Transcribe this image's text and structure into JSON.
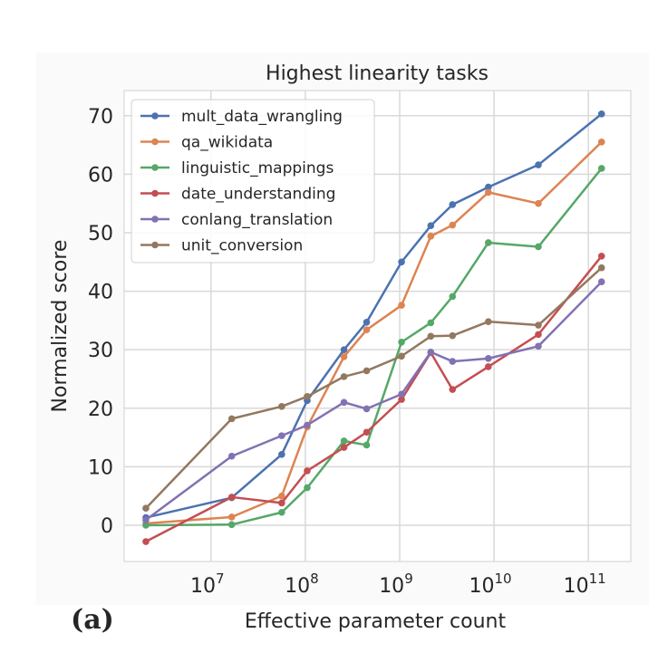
{
  "chart_data": {
    "type": "line",
    "title": "Highest linearity tasks",
    "xlabel": "Effective parameter count",
    "ylabel": "Normalized score",
    "panel_label": "(a)",
    "x_scale": "log10",
    "x_log10": [
      6.31,
      7.22,
      7.75,
      8.02,
      8.41,
      8.65,
      9.02,
      9.33,
      9.56,
      9.94,
      10.47,
      11.14
    ],
    "xlim_log10": [
      6.08,
      11.45
    ],
    "ylim": [
      -6.2,
      74.3
    ],
    "yticks": [
      0,
      10,
      20,
      30,
      40,
      50,
      60,
      70
    ],
    "xticks": [
      {
        "exp": 7,
        "base": "10",
        "sup": "7"
      },
      {
        "exp": 8,
        "base": "10",
        "sup": "8"
      },
      {
        "exp": 9,
        "base": "10",
        "sup": "9"
      },
      {
        "exp": 10,
        "base": "10",
        "sup": "10"
      },
      {
        "exp": 11,
        "base": "10",
        "sup": "11"
      }
    ],
    "grid": true,
    "legend_position": "top-left",
    "series": [
      {
        "name": "mult_data_wrangling",
        "color": "#4c72b0",
        "values": [
          1.3,
          4.7,
          12.1,
          21.3,
          30.0,
          34.7,
          45.0,
          51.2,
          54.8,
          57.8,
          61.6,
          70.3
        ]
      },
      {
        "name": "qa_wikidata",
        "color": "#dd8452",
        "values": [
          0.3,
          1.4,
          5.0,
          16.8,
          28.8,
          33.4,
          37.6,
          49.4,
          51.3,
          56.9,
          55.0,
          65.5
        ]
      },
      {
        "name": "linguistic_mappings",
        "color": "#55a868",
        "values": [
          0.0,
          0.1,
          2.2,
          6.4,
          14.4,
          13.7,
          31.3,
          34.6,
          39.1,
          48.3,
          47.6,
          61.0
        ]
      },
      {
        "name": "date_understanding",
        "color": "#c44e52",
        "values": [
          -2.8,
          4.8,
          3.8,
          9.3,
          13.3,
          15.9,
          21.5,
          29.5,
          23.2,
          27.1,
          32.6,
          46.0
        ]
      },
      {
        "name": "conlang_translation",
        "color": "#8172b3",
        "values": [
          0.9,
          11.8,
          15.3,
          17.1,
          21.0,
          19.9,
          22.4,
          29.6,
          28.0,
          28.5,
          30.6,
          41.6
        ]
      },
      {
        "name": "unit_conversion",
        "color": "#937860",
        "values": [
          2.9,
          18.2,
          20.3,
          22.0,
          25.4,
          26.4,
          28.9,
          32.3,
          32.4,
          34.8,
          34.2,
          44.0
        ]
      }
    ]
  }
}
